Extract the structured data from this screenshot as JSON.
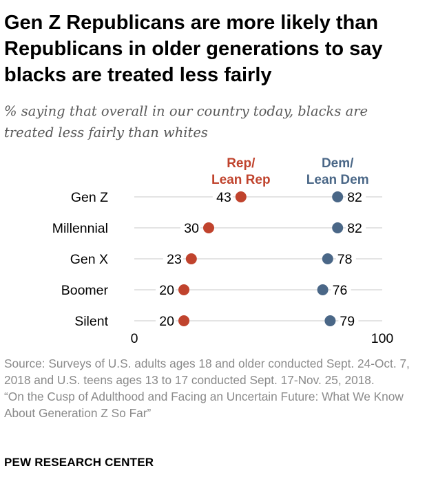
{
  "title": "Gen Z Republicans are more likely than Republicans in older generations to say blacks are treated less fairly",
  "subtitle": "% saying that overall in our country today, blacks are treated less fairly than whites",
  "chart_data": {
    "type": "dot",
    "categories": [
      "Gen Z",
      "Millennial",
      "Gen X",
      "Boomer",
      "Silent"
    ],
    "series": [
      {
        "name": "Rep/\nLean Rep",
        "color": "#c0432d",
        "values": [
          43,
          30,
          23,
          20,
          20
        ]
      },
      {
        "name": "Dem/\nLean Dem",
        "color": "#4a6787",
        "values": [
          82,
          82,
          78,
          76,
          79
        ]
      }
    ],
    "xlim": [
      0,
      100
    ],
    "x_tick_labels": [
      "0",
      "100"
    ]
  },
  "source": {
    "line1": "Source: Surveys of U.S. adults ages 18 and older conducted Sept. 24-Oct. 7, 2018 and U.S. teens ages 13 to 17 conducted Sept. 17-Nov. 25, 2018.",
    "line2": "“On the Cusp of Adulthood and Facing an Uncertain Future: What We Know About Generation Z So Far”"
  },
  "brand": "PEW RESEARCH CENTER"
}
